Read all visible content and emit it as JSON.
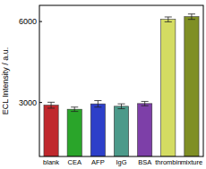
{
  "chart_data": {
    "type": "bar",
    "y_label": "ECL Intensity / a.u.",
    "categories": [
      "blank",
      "CEA",
      "AFP",
      "IgG",
      "BSA",
      "thrombin",
      "mixture"
    ],
    "values": [
      2900,
      2750,
      2950,
      2860,
      2960,
      6080,
      6180
    ],
    "errors": [
      110,
      80,
      120,
      90,
      80,
      90,
      100
    ],
    "colors": [
      "#c0282d",
      "#2aa52a",
      "#2d3fc9",
      "#4c9a8a",
      "#7d3fa8",
      "#d4dc62",
      "#7f8f24"
    ],
    "ylim": [
      1000,
      6600
    ],
    "yticks": [
      3000,
      6000
    ]
  }
}
